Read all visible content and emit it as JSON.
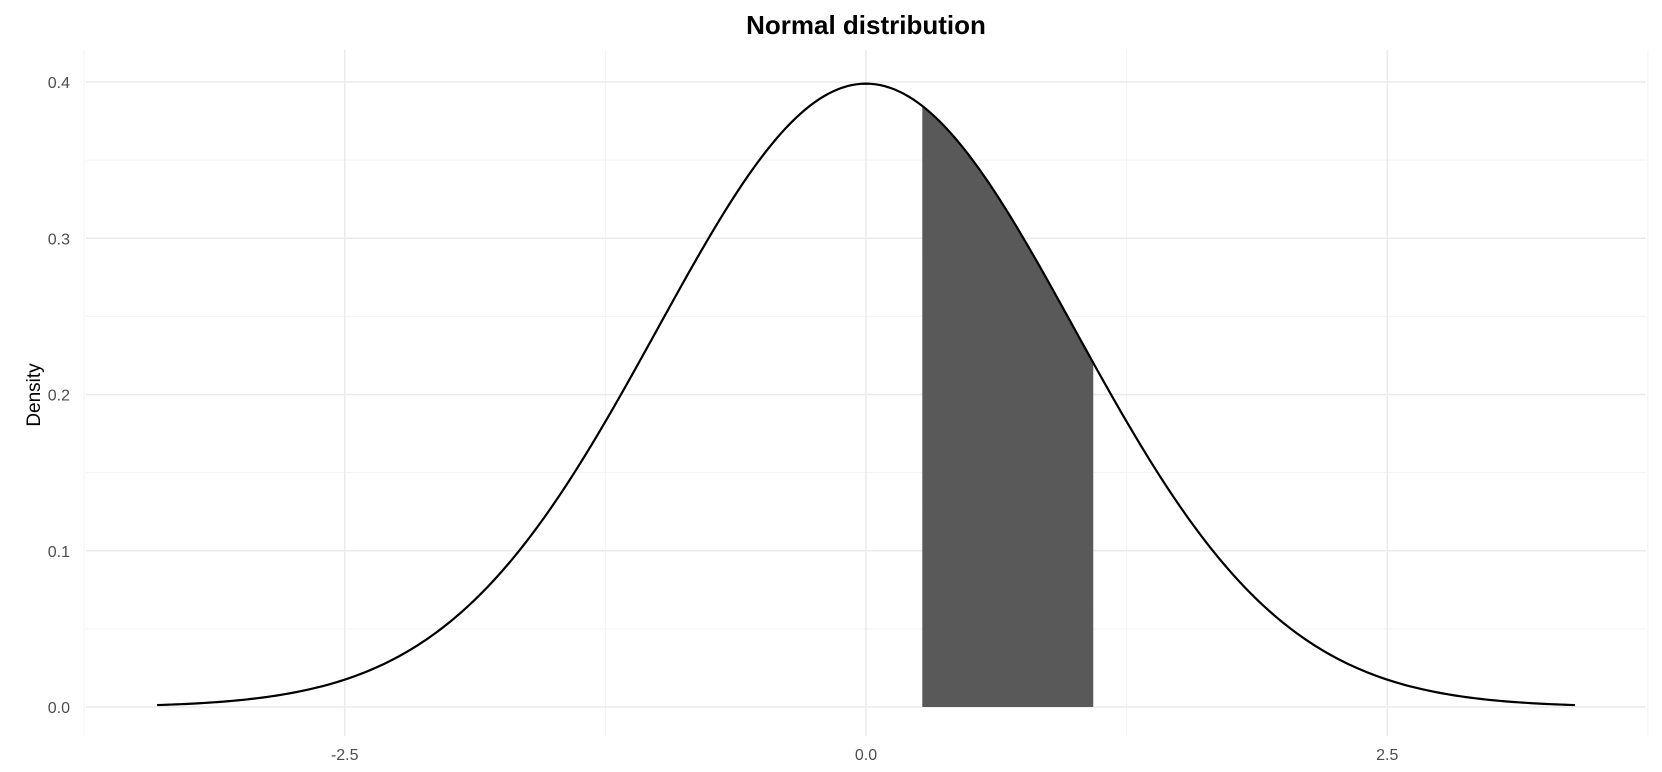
{
  "chart_data": {
    "type": "area",
    "title": "Normal distribution",
    "xlabel": "",
    "ylabel": "Density",
    "distribution": {
      "mean": 0,
      "sd": 1
    },
    "curve_x_range": [
      -3.4,
      3.4
    ],
    "shaded_region": {
      "from": 0.27,
      "to": 1.09
    },
    "xlim": [
      -3.75,
      3.75
    ],
    "ylim": [
      0,
      0.4
    ],
    "x_ticks": [
      -2.5,
      0.0,
      2.5
    ],
    "x_tick_labels": [
      "-2.5",
      "0.0",
      "2.5"
    ],
    "y_ticks": [
      0.0,
      0.1,
      0.2,
      0.3,
      0.4
    ],
    "y_tick_labels": [
      "0.0",
      "0.1",
      "0.2",
      "0.3",
      "0.4"
    ],
    "grid": true,
    "legend": "none",
    "colors": {
      "curve": "#000000",
      "shade": "#595959",
      "grid": "#ebebeb"
    }
  }
}
